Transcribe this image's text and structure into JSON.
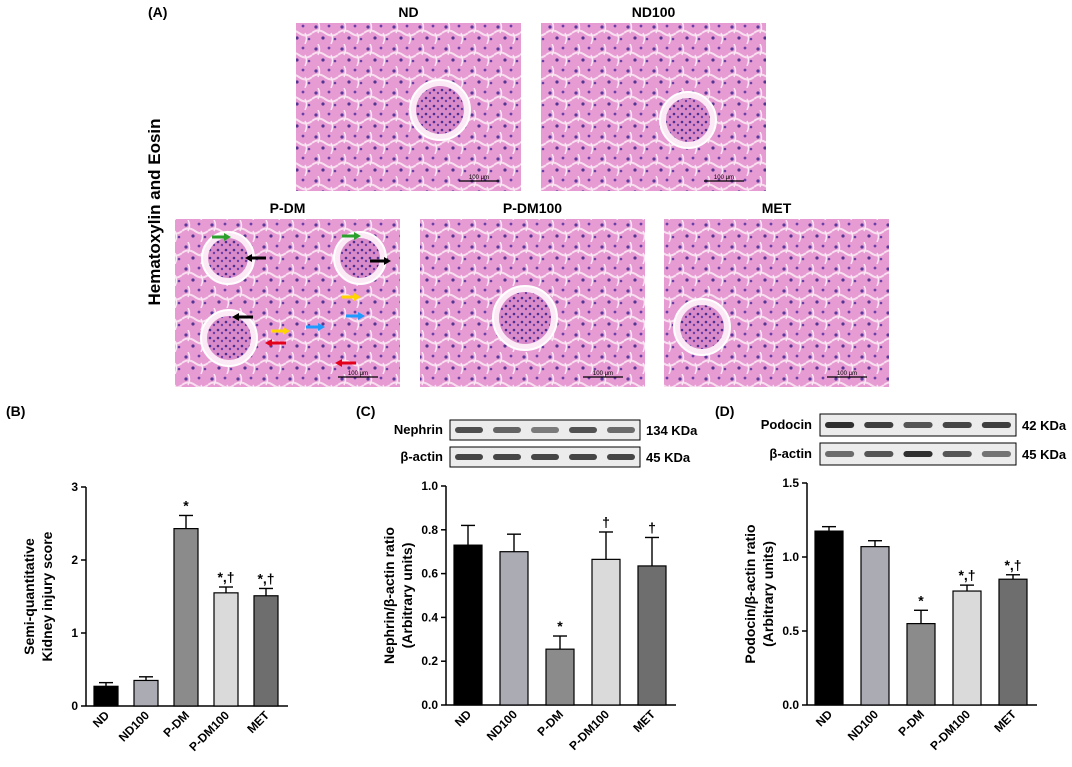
{
  "panel_labels": {
    "a": "(A)",
    "b": "(B)",
    "c": "(C)",
    "d": "(D)"
  },
  "histology": {
    "stain_label": "Hematoxylin and Eosin",
    "micrographs": [
      {
        "label": "ND",
        "scale_bar": "100 μm"
      },
      {
        "label": "ND100",
        "scale_bar": "100 μm"
      },
      {
        "label": "P-DM",
        "scale_bar": "100 μm"
      },
      {
        "label": "P-DM100",
        "scale_bar": "100 μm"
      },
      {
        "label": "MET",
        "scale_bar": "100 μm"
      }
    ],
    "arrow_colors": [
      "#2ca02c",
      "#000000",
      "#ffd400",
      "#1f9bff",
      "#e3001b"
    ]
  },
  "blots": {
    "c": [
      {
        "protein": "Nephrin",
        "size": "134 KDa"
      },
      {
        "protein": "β-actin",
        "size": "45 KDa"
      }
    ],
    "d": [
      {
        "protein": "Podocin",
        "size": "42 KDa"
      },
      {
        "protein": "β-actin",
        "size": "45 KDa"
      }
    ]
  },
  "chart_data": [
    {
      "panel": "B",
      "type": "bar",
      "categories": [
        "ND",
        "ND100",
        "P-DM",
        "P-DM100",
        "MET"
      ],
      "values": [
        0.27,
        0.35,
        2.43,
        1.55,
        1.51
      ],
      "errors": [
        0.05,
        0.05,
        0.18,
        0.08,
        0.1
      ],
      "significance": [
        "",
        "",
        "*",
        "*,†",
        "*,†"
      ],
      "colors": [
        "#000000",
        "#ababb3",
        "#8b8b8b",
        "#dadada",
        "#6e6e6e"
      ],
      "ylabel": [
        "Semi-quantitative",
        "Kidney injury score"
      ],
      "ylim": [
        0,
        3
      ],
      "yticks": [
        "0",
        "1",
        "2",
        "3"
      ]
    },
    {
      "panel": "C",
      "type": "bar",
      "categories": [
        "ND",
        "ND100",
        "P-DM",
        "P-DM100",
        "MET"
      ],
      "values": [
        0.73,
        0.7,
        0.255,
        0.665,
        0.635
      ],
      "errors": [
        0.09,
        0.08,
        0.06,
        0.125,
        0.13
      ],
      "significance": [
        "",
        "",
        "*",
        "†",
        "†"
      ],
      "colors": [
        "#000000",
        "#ababb3",
        "#8b8b8b",
        "#dadada",
        "#6e6e6e"
      ],
      "ylabel": [
        "Nephrin/β-actin ratio",
        "(Arbitrary units)"
      ],
      "ylim": [
        0,
        1.0
      ],
      "yticks": [
        "0.0",
        "0.2",
        "0.4",
        "0.6",
        "0.8",
        "1.0"
      ]
    },
    {
      "panel": "D",
      "type": "bar",
      "categories": [
        "ND",
        "ND100",
        "P-DM",
        "P-DM100",
        "MET"
      ],
      "values": [
        1.175,
        1.07,
        0.55,
        0.77,
        0.85
      ],
      "errors": [
        0.03,
        0.04,
        0.09,
        0.04,
        0.03
      ],
      "significance": [
        "",
        "",
        "*",
        "*,†",
        "*,†"
      ],
      "colors": [
        "#000000",
        "#ababb3",
        "#8b8b8b",
        "#dadada",
        "#6e6e6e"
      ],
      "ylabel": [
        "Podocin/β-actin ratio",
        "(Arbitrary units)"
      ],
      "ylim": [
        0,
        1.5
      ],
      "yticks": [
        "0.0",
        "0.5",
        "1.0",
        "1.5"
      ]
    }
  ]
}
